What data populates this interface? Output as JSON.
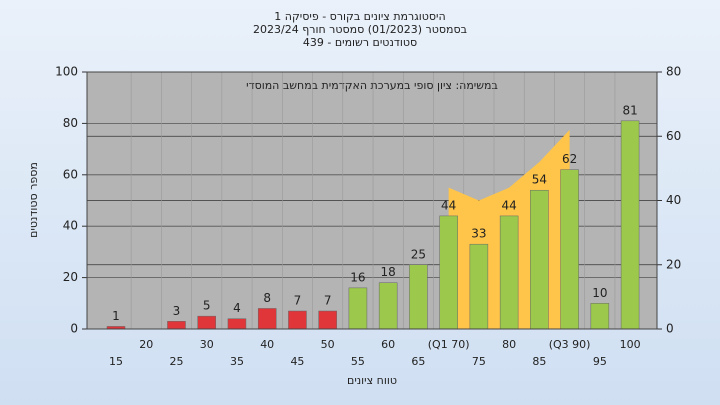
{
  "chart_data": {
    "type": "bar",
    "title_lines": [
      "היסטוגרמת ציונים בקורס - פיסיקה 1",
      "בסמסטר  (01/2023)  סמסטר חורף  2023/24",
      "סטודנטים רשומים - 439"
    ],
    "annotation": "במשימה: ציון סופי במערכת האקדמית במחשב המוסדי",
    "xlabel": "טווח ציונים",
    "ylabel": "מספר סטודנטים",
    "categories": [
      "15",
      "20",
      "25",
      "30",
      "35",
      "40",
      "45",
      "50",
      "55",
      "60",
      "65",
      "(Q1 70)",
      "75",
      "80",
      "85",
      "(Q3 90)",
      "95",
      "100"
    ],
    "series": [
      {
        "type": "bar",
        "values": [
          1,
          null,
          3,
          5,
          4,
          8,
          7,
          7,
          16,
          18,
          25,
          44,
          33,
          44,
          54,
          62,
          10,
          81
        ],
        "colors": [
          "#e0363a",
          "#e0363a",
          "#e0363a",
          "#e0363a",
          "#e0363a",
          "#e0363a",
          "#e0363a",
          "#e0363a",
          "#9cc94c",
          "#9cc94c",
          "#9cc94c",
          "#9cc94c",
          "#9cc94c",
          "#9cc94c",
          "#9cc94c",
          "#9cc94c",
          "#9cc94c",
          "#9cc94c"
        ]
      },
      {
        "type": "area",
        "axis": "y2",
        "color": "#ffc54a",
        "values": [
          null,
          null,
          null,
          null,
          null,
          null,
          null,
          null,
          null,
          null,
          null,
          44,
          40,
          44,
          52,
          62,
          null,
          null
        ]
      }
    ],
    "ylim": [
      0,
      100
    ],
    "yticks": [
      0,
      20,
      40,
      60,
      80,
      100
    ],
    "y2lim": [
      0,
      80
    ],
    "y2ticks": [
      0,
      20,
      40,
      60,
      80
    ],
    "grid": true
  }
}
